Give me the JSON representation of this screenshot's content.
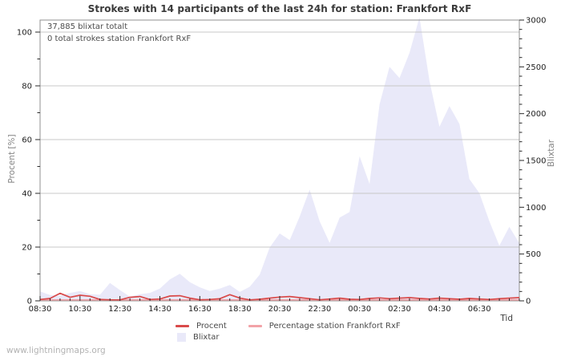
{
  "title": "Strokes with 14 participants of the last 24h for station: Frankfort RxF",
  "annotations": {
    "total_strokes": "37,885 blixtar totalt",
    "station_total": "0 total strokes station Frankfort RxF"
  },
  "watermark": "www.lightningmaps.org",
  "colors": {
    "procent_line": "#d94a4a",
    "station_line": "#f2a3a8",
    "blixtar_fill": "#e9e9f9",
    "gridline": "#c8c8c8",
    "border": "#909090",
    "tick": "#2a2a2a",
    "tick_label": "#222222"
  },
  "chart_data": {
    "type": "area",
    "title": "Strokes with 14 participants of the last 24h for station: Frankfort RxF",
    "x_label": "Tid",
    "y_left_label": "Procent  [%]",
    "y_right_label": "Blixtar",
    "grid": "horizontal",
    "legend_position": "bottom",
    "x_major_ticks": [
      "08:30",
      "10:30",
      "12:30",
      "14:30",
      "16:30",
      "18:30",
      "20:30",
      "22:30",
      "00:30",
      "02:30",
      "04:30",
      "06:30"
    ],
    "y_left_ticks": [
      0,
      20,
      40,
      60,
      80,
      100
    ],
    "y_right_ticks": [
      0,
      500,
      1000,
      1500,
      2000,
      2500,
      3000
    ],
    "y_left_range": [
      0,
      104.5
    ],
    "y_right_range": [
      0,
      3000
    ],
    "x": [
      "08:30",
      "09:00",
      "09:30",
      "10:00",
      "10:30",
      "11:00",
      "11:30",
      "12:00",
      "12:30",
      "13:00",
      "13:30",
      "14:00",
      "14:30",
      "15:00",
      "15:30",
      "16:00",
      "16:30",
      "17:00",
      "17:30",
      "18:00",
      "18:30",
      "19:00",
      "19:30",
      "20:00",
      "20:30",
      "21:00",
      "21:30",
      "22:00",
      "22:30",
      "23:00",
      "23:30",
      "00:00",
      "00:30",
      "01:00",
      "01:30",
      "02:00",
      "02:30",
      "03:00",
      "03:30",
      "04:00",
      "04:30",
      "05:00",
      "05:30",
      "06:00",
      "06:30",
      "07:00",
      "07:30",
      "08:00",
      "08:30"
    ],
    "series": [
      {
        "name": "Blixtar",
        "type": "area",
        "axis": "right",
        "color": "#e9e9f9",
        "values": [
          100,
          62,
          55,
          85,
          105,
          70,
          65,
          190,
          115,
          45,
          70,
          85,
          130,
          230,
          290,
          200,
          145,
          105,
          130,
          170,
          95,
          150,
          280,
          570,
          720,
          650,
          900,
          1190,
          850,
          620,
          890,
          950,
          1545,
          1250,
          2100,
          2500,
          2380,
          2650,
          3030,
          2350,
          1860,
          2080,
          1890,
          1300,
          1150,
          850,
          590,
          790,
          615
        ]
      },
      {
        "name": "Procent",
        "type": "line",
        "axis": "left",
        "color": "#d94a4a",
        "values": [
          0.5,
          0.9,
          2.8,
          1.3,
          2.1,
          1.7,
          0.5,
          0.4,
          0.3,
          1.3,
          1.6,
          0.5,
          0.7,
          1.8,
          1.9,
          1.0,
          0.4,
          0.5,
          0.8,
          2.3,
          1.0,
          0.3,
          0.6,
          1.0,
          1.4,
          1.6,
          1.2,
          0.8,
          0.4,
          0.7,
          1.0,
          0.6,
          0.5,
          0.9,
          1.1,
          0.8,
          1.0,
          1.2,
          0.9,
          0.7,
          1.0,
          0.8,
          0.6,
          0.9,
          0.7,
          0.5,
          0.8,
          1.0,
          1.2
        ]
      },
      {
        "name": "Percentage station Frankfort RxF",
        "type": "line",
        "axis": "left",
        "color": "#f2a3a8",
        "values": [
          0,
          0,
          0,
          0,
          0,
          0,
          0,
          0,
          0,
          0,
          0,
          0,
          0,
          0,
          0,
          0,
          0,
          0,
          0,
          0,
          0,
          0,
          0,
          0,
          0,
          0,
          0,
          0,
          0,
          0,
          0,
          0,
          0,
          0,
          0,
          0,
          0,
          0,
          0,
          0,
          0,
          0,
          0,
          0,
          0,
          0,
          0,
          0,
          0
        ]
      }
    ]
  }
}
